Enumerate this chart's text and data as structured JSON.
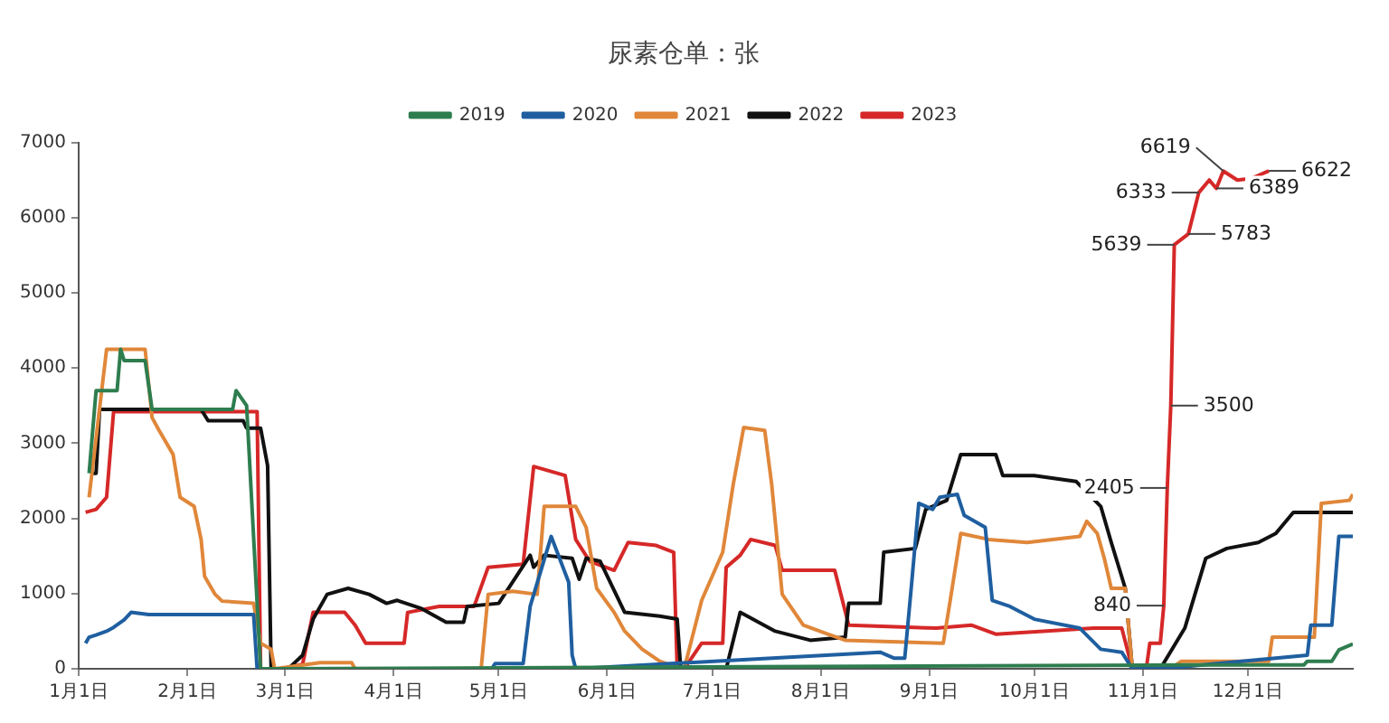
{
  "chart_data": {
    "type": "line",
    "title": "尿素仓单：张",
    "legend": "top",
    "grid": false,
    "marker": "none",
    "xlim": [
      "--01-01",
      "--12-31"
    ],
    "xticks": [
      {
        "value": "--01-01",
        "label": "1月1日"
      },
      {
        "value": "--02-01",
        "label": "2月1日"
      },
      {
        "value": "--03-01",
        "label": "3月1日"
      },
      {
        "value": "--04-01",
        "label": "4月1日"
      },
      {
        "value": "--05-01",
        "label": "5月1日"
      },
      {
        "value": "--06-01",
        "label": "6月1日"
      },
      {
        "value": "--07-01",
        "label": "7月1日"
      },
      {
        "value": "--08-01",
        "label": "8月1日"
      },
      {
        "value": "--09-01",
        "label": "9月1日"
      },
      {
        "value": "--10-01",
        "label": "10月1日"
      },
      {
        "value": "--11-01",
        "label": "11月1日"
      },
      {
        "value": "--12-01",
        "label": "12月1日"
      }
    ],
    "ylim": [
      0,
      7000
    ],
    "yticks": [
      0,
      1000,
      2000,
      3000,
      4000,
      5000,
      6000,
      7000
    ],
    "series": [
      {
        "name": "2019",
        "color": "#2e7d4f",
        "x": [
          "--01-04",
          "--01-06",
          "--01-12",
          "--01-13",
          "--01-14",
          "--01-20",
          "--01-22",
          "--02-14",
          "--02-15",
          "--02-18",
          "--02-22",
          "--02-26",
          "--11-12",
          "--12-17",
          "--12-18",
          "--12-25",
          "--12-27",
          "--12-31"
        ],
        "values": [
          2600,
          3700,
          3700,
          4250,
          4100,
          4100,
          3450,
          3450,
          3700,
          3500,
          0,
          0,
          50,
          50,
          100,
          100,
          250,
          330
        ]
      },
      {
        "name": "2020",
        "color": "#1f5fa0",
        "x": [
          "--01-03",
          "--01-04",
          "--01-06",
          "--01-09",
          "--01-11",
          "--01-14",
          "--01-16",
          "--01-21",
          "--02-20",
          "--02-21",
          "--04-29",
          "--04-30",
          "--05-08",
          "--05-10",
          "--05-16",
          "--05-21",
          "--05-22",
          "--05-23",
          "--08-18",
          "--08-22",
          "--08-25",
          "--08-27",
          "--08-29",
          "--09-02",
          "--09-04",
          "--09-09",
          "--09-11",
          "--09-17",
          "--09-19",
          "--09-24",
          "--10-01",
          "--10-14",
          "--10-20",
          "--10-26",
          "--10-29",
          "--11-11",
          "--12-18",
          "--12-19",
          "--12-25",
          "--12-27",
          "--12-31"
        ],
        "values": [
          340,
          420,
          450,
          500,
          550,
          650,
          750,
          720,
          720,
          0,
          0,
          70,
          70,
          830,
          1760,
          1150,
          180,
          0,
          220,
          140,
          140,
          1150,
          2200,
          2120,
          2280,
          2320,
          2040,
          1880,
          910,
          830,
          660,
          540,
          260,
          220,
          0,
          20,
          180,
          580,
          580,
          1760,
          1760
        ]
      },
      {
        "name": "2021",
        "color": "#e0873a",
        "x": [
          "--01-04",
          "--01-09",
          "--01-20",
          "--01-22",
          "--01-24",
          "--01-28",
          "--01-30",
          "--02-03",
          "--02-05",
          "--02-06",
          "--02-09",
          "--02-11",
          "--02-20",
          "--02-22",
          "--02-25",
          "--02-26",
          "--03-11",
          "--03-20",
          "--03-21",
          "--04-26",
          "--04-28",
          "--05-05",
          "--05-12",
          "--05-14",
          "--05-23",
          "--05-26",
          "--05-29",
          "--06-03",
          "--06-06",
          "--06-11",
          "--06-16",
          "--06-22",
          "--06-23",
          "--06-28",
          "--07-04",
          "--07-07",
          "--07-10",
          "--07-16",
          "--07-18",
          "--07-21",
          "--07-27",
          "--08-03",
          "--08-08",
          "--09-05",
          "--09-07",
          "--09-10",
          "--09-18",
          "--09-29",
          "--10-14",
          "--10-16",
          "--10-19",
          "--10-21",
          "--10-23",
          "--10-27",
          "--10-29",
          "--11-09",
          "--11-12",
          "--12-07",
          "--12-08",
          "--12-20",
          "--12-22",
          "--12-30",
          "--12-31"
        ],
        "values": [
          2280,
          4250,
          4250,
          3340,
          3170,
          2850,
          2280,
          2160,
          1720,
          1230,
          990,
          900,
          870,
          340,
          260,
          0,
          80,
          80,
          0,
          0,
          990,
          1030,
          990,
          2160,
          2160,
          1880,
          1070,
          750,
          500,
          260,
          100,
          0,
          0,
          910,
          1550,
          2450,
          3210,
          3170,
          2450,
          990,
          580,
          460,
          380,
          340,
          910,
          1800,
          1720,
          1680,
          1760,
          1960,
          1800,
          1470,
          1070,
          1070,
          0,
          0,
          100,
          100,
          420,
          420,
          2200,
          2240,
          2320
        ]
      },
      {
        "name": "2022",
        "color": "#111111",
        "x": [
          "--01-05",
          "--01-06",
          "--01-07",
          "--02-05",
          "--02-07",
          "--02-17",
          "--02-18",
          "--02-22",
          "--02-24",
          "--02-25",
          "--03-02",
          "--03-03",
          "--03-06",
          "--03-09",
          "--03-13",
          "--03-19",
          "--03-25",
          "--03-30",
          "--04-02",
          "--04-09",
          "--04-16",
          "--04-21",
          "--04-22",
          "--05-01",
          "--05-10",
          "--05-11",
          "--05-14",
          "--05-22",
          "--05-24",
          "--05-26",
          "--05-30",
          "--06-06",
          "--06-16",
          "--06-21",
          "--06-22",
          "--07-05",
          "--07-09",
          "--07-19",
          "--07-29",
          "--08-08",
          "--08-09",
          "--08-18",
          "--08-19",
          "--08-28",
          "--08-31",
          "--09-06",
          "--09-10",
          "--09-20",
          "--09-22",
          "--10-01",
          "--10-13",
          "--10-20",
          "--10-23",
          "--10-27",
          "--10-29",
          "--11-06",
          "--11-13",
          "--11-19",
          "--11-25",
          "--12-04",
          "--12-09",
          "--12-14",
          "--12-31"
        ],
        "values": [
          2600,
          2600,
          3450,
          3450,
          3300,
          3300,
          3200,
          3200,
          2700,
          0,
          0,
          50,
          180,
          660,
          990,
          1070,
          990,
          870,
          910,
          800,
          620,
          620,
          830,
          870,
          1510,
          1350,
          1510,
          1470,
          1190,
          1470,
          1430,
          750,
          700,
          660,
          0,
          0,
          750,
          500,
          380,
          420,
          870,
          870,
          1550,
          1600,
          2120,
          2240,
          2850,
          2850,
          2570,
          2570,
          2490,
          2160,
          1680,
          1070,
          0,
          0,
          540,
          1470,
          1600,
          1680,
          1800,
          2080,
          2080
        ]
      },
      {
        "name": "2023",
        "color": "#d62828",
        "x": [
          "--01-03",
          "--01-06",
          "--01-09",
          "--01-11",
          "--02-18",
          "--02-21",
          "--02-22",
          "--02-28",
          "--03-06",
          "--03-09",
          "--03-18",
          "--03-21",
          "--03-24",
          "--04-04",
          "--04-05",
          "--04-14",
          "--04-24",
          "--04-28",
          "--05-08",
          "--05-11",
          "--05-20",
          "--05-23",
          "--05-27",
          "--06-03",
          "--06-07",
          "--06-15",
          "--06-20",
          "--06-21",
          "--06-23",
          "--06-28",
          "--07-04",
          "--07-05",
          "--07-09",
          "--07-12",
          "--07-19",
          "--07-21",
          "--08-05",
          "--08-09",
          "--09-03",
          "--09-13",
          "--09-20",
          "--10-18",
          "--10-26",
          "--10-29",
          "--11-02",
          "--11-03",
          "--11-06",
          "--11-07",
          "--11-08",
          "--11-09",
          "--11-10",
          "--11-14",
          "--11-17",
          "--11-20",
          "--11-22",
          "--11-24",
          "--11-28",
          "--12-02",
          "--12-07"
        ],
        "values": [
          2080,
          2120,
          2280,
          3420,
          3420,
          3420,
          0,
          0,
          60,
          750,
          750,
          580,
          340,
          340,
          750,
          830,
          830,
          1350,
          1390,
          2690,
          2570,
          1720,
          1430,
          1310,
          1680,
          1640,
          1550,
          0,
          0,
          340,
          340,
          1350,
          1510,
          1720,
          1640,
          1310,
          1310,
          580,
          540,
          580,
          460,
          540,
          540,
          0,
          0,
          340,
          340,
          840,
          2405,
          3500,
          5639,
          5783,
          6333,
          6500,
          6389,
          6619,
          6500,
          6520,
          6622
        ]
      }
    ],
    "annotations": [
      {
        "text": "840",
        "x": "--11-07",
        "y": 840
      },
      {
        "text": "3500",
        "x": "--11-09",
        "y": 3500
      },
      {
        "text": "2405",
        "x": "--11-08",
        "y": 2405
      },
      {
        "text": "5783",
        "x": "--11-14",
        "y": 5783
      },
      {
        "text": "5639",
        "x": "--11-10",
        "y": 5639
      },
      {
        "text": "6389",
        "x": "--11-22",
        "y": 6389
      },
      {
        "text": "6333",
        "x": "--11-17",
        "y": 6333
      },
      {
        "text": "6622",
        "x": "--12-07",
        "y": 6622
      },
      {
        "text": "6619",
        "x": "--11-24",
        "y": 6619
      }
    ]
  }
}
